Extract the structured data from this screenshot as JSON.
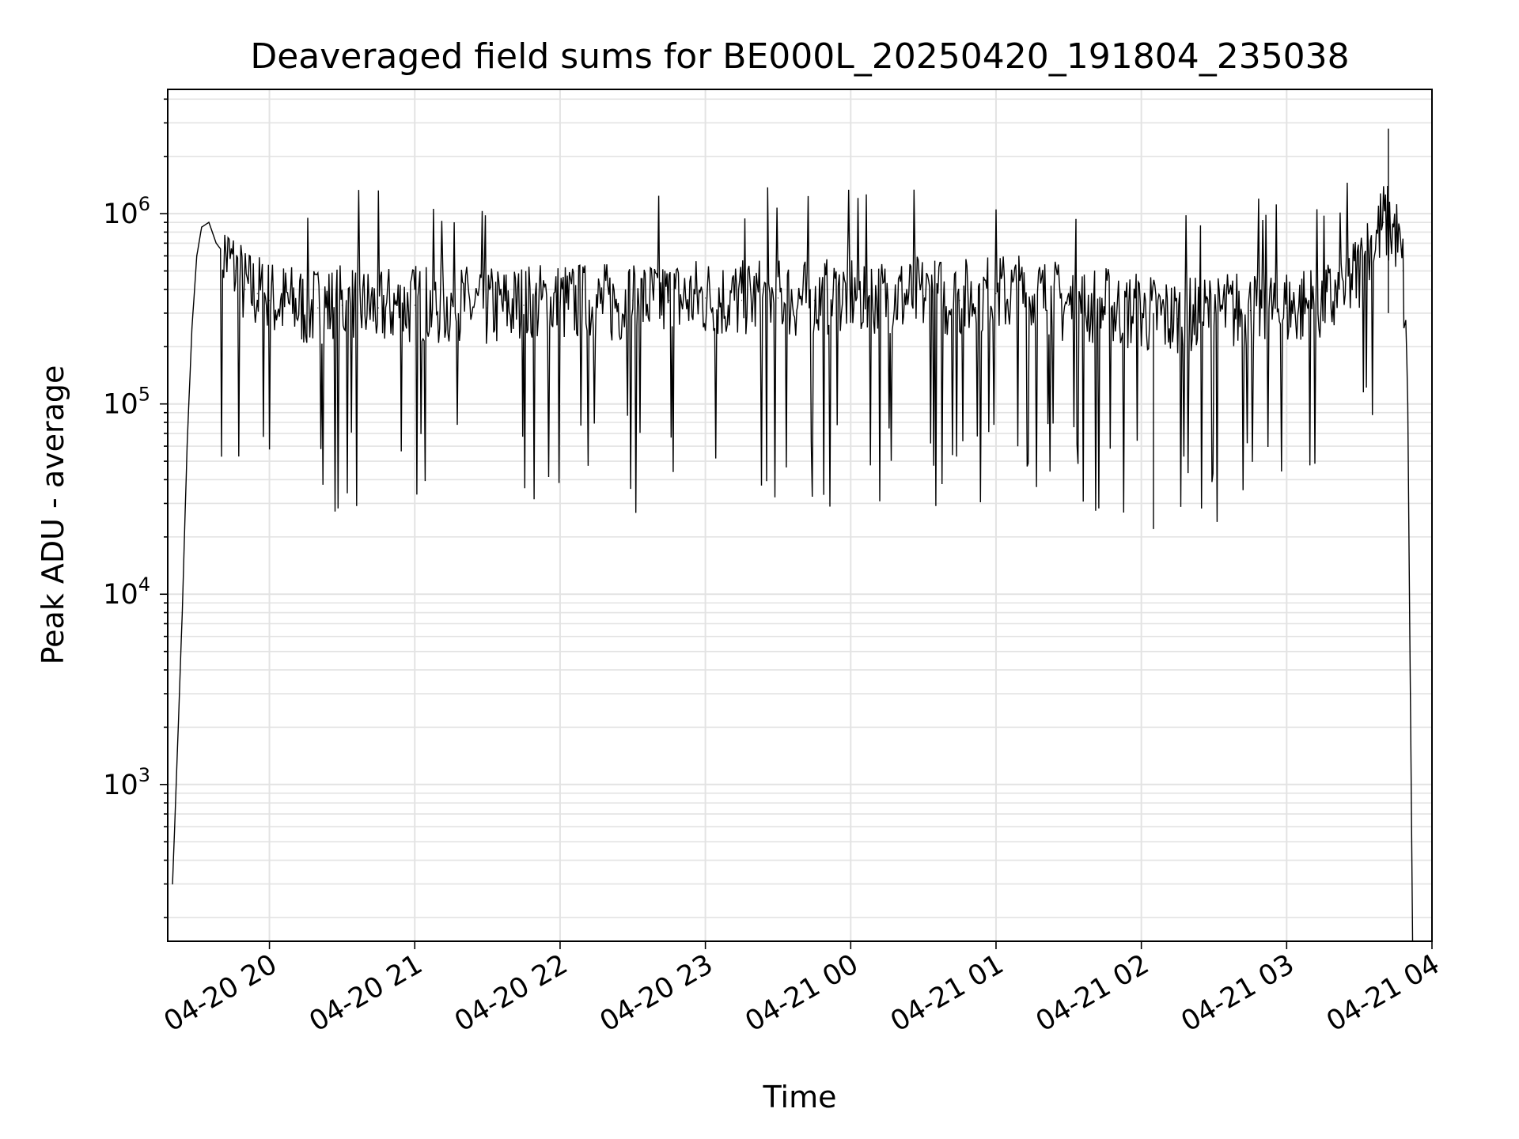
{
  "chart_data": {
    "type": "line",
    "title": "Deaveraged field sums for BE000L_20250420_191804_235038",
    "xlabel": "Time",
    "ylabel": "Peak ADU - average",
    "yscale": "log",
    "ylim": [
      150,
      4500000
    ],
    "xlim": [
      "2025-04-20 19:18",
      "2025-04-21 04:00"
    ],
    "grid": true,
    "line_color": "#000000",
    "x_ticks": [
      "04-20 20",
      "04-20 21",
      "04-20 22",
      "04-20 23",
      "04-21 00",
      "04-21 01",
      "04-21 02",
      "04-21 03",
      "04-21 04"
    ],
    "y_ticks": [
      {
        "base": "10",
        "exp": "3",
        "value": 1000
      },
      {
        "base": "10",
        "exp": "4",
        "value": 10000
      },
      {
        "base": "10",
        "exp": "5",
        "value": 100000
      },
      {
        "base": "10",
        "exp": "6",
        "value": 1000000
      }
    ],
    "series": [
      {
        "x": [
          "2025-04-20 19:20",
          "2025-04-20 19:22",
          "2025-04-20 19:24",
          "2025-04-20 19:26",
          "2025-04-20 19:28",
          "2025-04-20 19:30",
          "2025-04-20 19:32",
          "2025-04-20 19:35",
          "2025-04-20 19:38",
          "2025-04-20 19:42",
          "2025-04-20 19:46",
          "2025-04-20 19:50",
          "2025-04-20 19:55",
          "2025-04-20 20:00",
          "2025-04-20 20:10",
          "2025-04-20 20:20",
          "2025-04-20 20:30",
          "2025-04-20 20:45",
          "2025-04-20 21:00",
          "2025-04-20 21:15",
          "2025-04-20 21:30",
          "2025-04-20 21:45",
          "2025-04-20 22:00",
          "2025-04-20 22:15",
          "2025-04-20 22:30",
          "2025-04-20 22:45",
          "2025-04-20 23:00",
          "2025-04-20 23:15",
          "2025-04-20 23:30",
          "2025-04-20 23:45",
          "2025-04-21 00:00",
          "2025-04-21 00:15",
          "2025-04-21 00:30",
          "2025-04-21 00:45",
          "2025-04-21 01:00",
          "2025-04-21 01:15",
          "2025-04-21 01:30",
          "2025-04-21 01:45",
          "2025-04-21 02:00",
          "2025-04-21 02:15",
          "2025-04-21 02:30",
          "2025-04-21 02:45",
          "2025-04-21 03:00",
          "2025-04-21 03:10",
          "2025-04-21 03:20",
          "2025-04-21 03:30",
          "2025-04-21 03:40",
          "2025-04-21 03:45",
          "2025-04-21 03:48",
          "2025-04-21 03:50",
          "2025-04-21 03:52"
        ],
        "values": [
          300,
          1500,
          8000,
          60000,
          250000,
          600000,
          850000,
          900000,
          700000,
          600000,
          500000,
          400000,
          380000,
          350000,
          330000,
          320000,
          330000,
          320000,
          330000,
          330000,
          320000,
          330000,
          340000,
          330000,
          350000,
          350000,
          360000,
          350000,
          360000,
          350000,
          380000,
          360000,
          370000,
          350000,
          380000,
          370000,
          330000,
          320000,
          300000,
          280000,
          300000,
          310000,
          320000,
          330000,
          350000,
          500000,
          900000,
          800000,
          500000,
          100000,
          150
        ]
      }
    ],
    "range_high": {
      "x": "2025-04-21 03:42",
      "value": 2800000
    },
    "range_low": {
      "x": "2025-04-21 02:05",
      "value": 22000
    }
  }
}
